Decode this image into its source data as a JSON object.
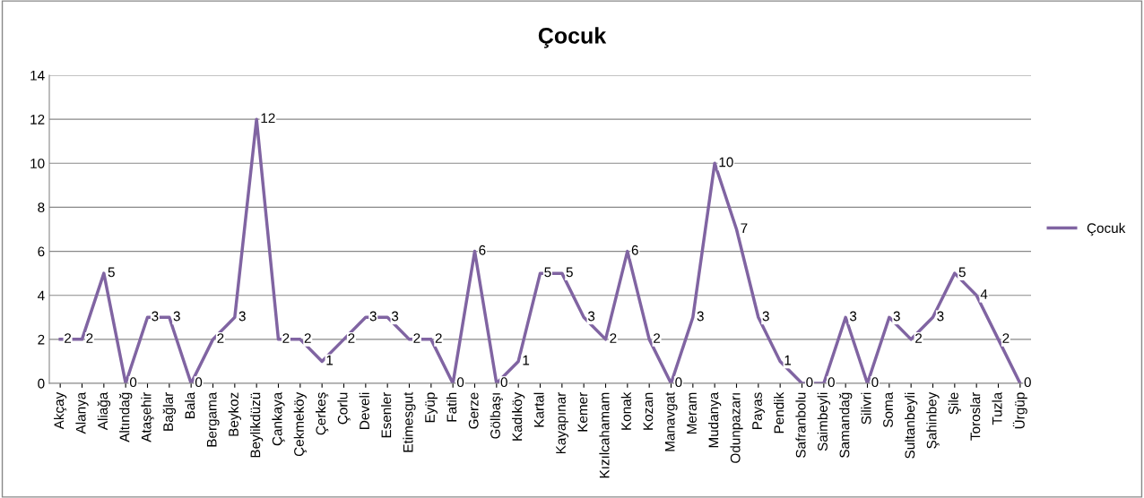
{
  "chart_data": {
    "type": "line",
    "title": "Çocuk",
    "categories": [
      "Akçay",
      "Alanya",
      "Aliağa",
      "Altındağ",
      "Ataşehir",
      "Bağlar",
      "Bala",
      "Bergama",
      "Beykoz",
      "Beylikdüzü",
      "Çankaya",
      "Çekmeköy",
      "Çerkeş",
      "Çorlu",
      "Develi",
      "Esenler",
      "Etimesgut",
      "Eyüp",
      "Fatih",
      "Gerze",
      "Gölbaşı",
      "Kadıköy",
      "Kartal",
      "Kayapınar",
      "Kemer",
      "Kızılcahamam",
      "Konak",
      "Kozan",
      "Manavgat",
      "Meram",
      "Mudanya",
      "Odunpazarı",
      "Payas",
      "Pendik",
      "Safranbolu",
      "Saimbeyli",
      "Samandağ",
      "Silivri",
      "Soma",
      "Sultanbeyli",
      "Şahinbey",
      "Şile",
      "Toroslar",
      "Tuzla",
      "Ürgüp"
    ],
    "series": [
      {
        "name": "Çocuk",
        "color": "#8064a2",
        "values": [
          2,
          2,
          5,
          0,
          3,
          3,
          0,
          2,
          3,
          12,
          2,
          2,
          1,
          2,
          3,
          3,
          2,
          2,
          0,
          6,
          0,
          1,
          5,
          5,
          3,
          2,
          6,
          2,
          0,
          3,
          10,
          7,
          3,
          1,
          0,
          0,
          3,
          0,
          3,
          2,
          3,
          5,
          4,
          2,
          0
        ]
      }
    ],
    "ylim": [
      0,
      14
    ],
    "yticks": [
      0,
      2,
      4,
      6,
      8,
      10,
      12,
      14
    ],
    "grid": "y",
    "legend": "right",
    "data_labels": true,
    "marker": "none",
    "line_style": "solid"
  }
}
